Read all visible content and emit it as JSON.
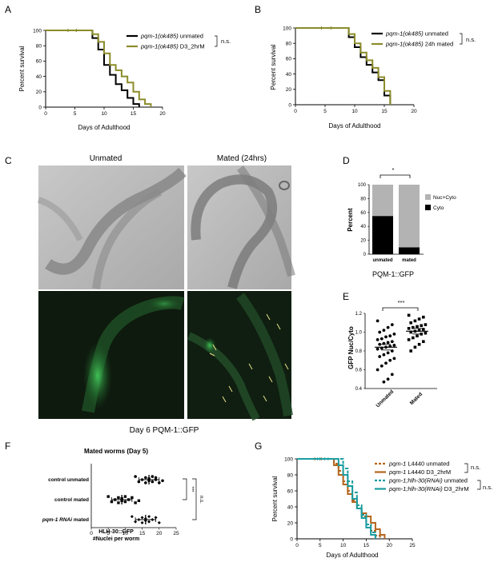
{
  "panels": {
    "A": {
      "letter": "A",
      "ylabel": "Percent survival",
      "xlabel": "Days of Adulthood",
      "legend": [
        {
          "italic": "pqm-1(ok485)",
          "rest": " unmated",
          "color": "#000000"
        },
        {
          "italic": "pqm-1(ok485)",
          "rest": " D3_2hrM",
          "color": "#8b8c2a"
        }
      ],
      "ns": "n.s."
    },
    "B": {
      "letter": "B",
      "ylabel": "Percent survival",
      "xlabel": "Days of Adulthood",
      "legend": [
        {
          "italic": "pqm-1(ok485)",
          "rest": " unmated",
          "color": "#000000"
        },
        {
          "italic": "pqm-1(ok485)",
          "rest": " 24h mated",
          "color": "#8b8c2a"
        }
      ],
      "ns": "n.s."
    },
    "C": {
      "letter": "C",
      "col1": "Unmated",
      "col2": "Mated  (24hrs)",
      "caption": "Day 6 PQM-1::GFP"
    },
    "D": {
      "letter": "D",
      "ylabel": "Percent",
      "caption": "PQM-1::GFP",
      "sig": "*",
      "legend": [
        {
          "label": "Nuc+Cyto",
          "color": "#b3b3b3"
        },
        {
          "label": "Cyto",
          "color": "#000000"
        }
      ]
    },
    "E": {
      "letter": "E",
      "ylabel": "GFP Nuc/Cyto",
      "sig": "***"
    },
    "F": {
      "letter": "F",
      "title": "Mated worms (Day 5)",
      "xlabel1": "HLH-30::GFP",
      "xlabel2": "#Nuclei per worm",
      "rows": [
        {
          "label": "control unmated",
          "italic": false
        },
        {
          "label": "control mated",
          "italic": false
        },
        {
          "italic_part": "pqm-1 RNAi",
          "rest": " mated",
          "italic": true
        }
      ],
      "sig1": "***",
      "sig2": "n.s."
    },
    "G": {
      "letter": "G",
      "ylabel": "Percent survival",
      "xlabel": "Days of Adulthood",
      "legend": [
        {
          "italic": "pqm-1",
          "rest": " L4440 unmated",
          "color": "#b5651d",
          "dash": true
        },
        {
          "italic": "pqm-1",
          "rest": " L4440 D3_2hrM",
          "color": "#b5651d",
          "dash": false
        },
        {
          "italic": "pqm-1;hlh-30(RNAi)",
          "rest": " unmated",
          "color": "#1a9da0",
          "dash": true
        },
        {
          "italic": "pqm-1;hlh-30(RNAi)",
          "rest": " D3_2hrM",
          "color": "#1a9da0",
          "dash": false
        }
      ],
      "ns1": "n.s.",
      "ns2": "n.s."
    }
  },
  "chart_data": [
    {
      "panel": "A",
      "type": "line",
      "xlim": [
        0,
        20
      ],
      "ylim": [
        0,
        100
      ],
      "xticks": [
        0,
        5,
        10,
        15,
        20
      ],
      "yticks": [
        0,
        20,
        40,
        60,
        80,
        100
      ],
      "xlabel": "Days of Adulthood",
      "ylabel": "Percent survival",
      "series": [
        {
          "name": "pqm-1(ok485) unmated",
          "color": "#000000",
          "x": [
            0,
            7,
            8,
            9,
            10,
            11,
            12,
            13,
            14,
            15,
            16
          ],
          "y": [
            100,
            100,
            90,
            75,
            55,
            42,
            30,
            22,
            12,
            4,
            0
          ]
        },
        {
          "name": "pqm-1(ok485) D3_2hrM",
          "color": "#8b8c2a",
          "x": [
            0,
            7,
            8,
            9,
            10,
            11,
            12,
            13,
            14,
            15,
            16,
            17,
            18
          ],
          "y": [
            100,
            100,
            95,
            85,
            70,
            55,
            48,
            40,
            32,
            20,
            10,
            4,
            0
          ]
        }
      ]
    },
    {
      "panel": "B",
      "type": "line",
      "xlim": [
        0,
        20
      ],
      "ylim": [
        0,
        100
      ],
      "xticks": [
        0,
        5,
        10,
        15,
        20
      ],
      "yticks": [
        0,
        20,
        40,
        60,
        80,
        100
      ],
      "xlabel": "Days of Adulthood",
      "ylabel": "Percent survival",
      "series": [
        {
          "name": "pqm-1(ok485) unmated",
          "color": "#000000",
          "x": [
            0,
            8,
            9,
            10,
            11,
            12,
            13,
            14,
            15,
            16
          ],
          "y": [
            100,
            100,
            88,
            75,
            62,
            52,
            42,
            32,
            12,
            0
          ]
        },
        {
          "name": "pqm-1(ok485) 24h mated",
          "color": "#8b8c2a",
          "x": [
            0,
            8,
            9,
            10,
            11,
            12,
            13,
            14,
            15,
            16
          ],
          "y": [
            100,
            100,
            92,
            80,
            68,
            58,
            48,
            36,
            18,
            0
          ]
        }
      ]
    },
    {
      "panel": "D",
      "type": "bar",
      "categories": [
        "unmated",
        "mated"
      ],
      "ylim": [
        0,
        100
      ],
      "yticks": [
        0,
        20,
        40,
        60,
        80,
        100
      ],
      "series": [
        {
          "name": "Cyto",
          "values": [
            55,
            10
          ]
        },
        {
          "name": "Nuc+Cyto",
          "values": [
            45,
            90
          ]
        }
      ]
    },
    {
      "panel": "E",
      "type": "scatter",
      "categories": [
        "Unmated",
        "Mated"
      ],
      "ylim": [
        0.4,
        1.2
      ],
      "yticks": [
        0.4,
        0.6,
        0.8,
        1.0,
        1.2
      ],
      "means": [
        0.84,
        1.01
      ],
      "series": [
        {
          "name": "Unmated",
          "values": [
            1.12,
            1.08,
            1.05,
            1.02,
            1.0,
            0.98,
            0.96,
            0.95,
            0.93,
            0.92,
            0.9,
            0.89,
            0.88,
            0.87,
            0.86,
            0.85,
            0.84,
            0.83,
            0.82,
            0.8,
            0.78,
            0.76,
            0.74,
            0.72,
            0.7,
            0.67,
            0.64,
            0.6,
            0.55,
            0.5,
            0.47
          ]
        },
        {
          "name": "Mated",
          "values": [
            1.18,
            1.16,
            1.14,
            1.12,
            1.1,
            1.08,
            1.07,
            1.06,
            1.05,
            1.04,
            1.03,
            1.02,
            1.01,
            1.0,
            0.99,
            0.98,
            0.96,
            0.94,
            0.92,
            0.9,
            0.87,
            0.84,
            0.8
          ]
        }
      ]
    },
    {
      "panel": "F",
      "type": "scatter",
      "xlim": [
        0,
        25
      ],
      "xticks": [
        0,
        5,
        10,
        15,
        20,
        25
      ],
      "categories": [
        "control unmated",
        "control mated",
        "pqm-1 RNAi mated"
      ],
      "means": [
        17,
        9,
        16
      ],
      "series": [
        {
          "name": "control unmated",
          "values": [
            13,
            14,
            15,
            16,
            16,
            17,
            17,
            18,
            18,
            19,
            19,
            20,
            21
          ]
        },
        {
          "name": "control mated",
          "values": [
            5,
            6,
            7,
            8,
            8,
            9,
            9,
            10,
            10,
            11,
            12,
            13,
            14
          ]
        },
        {
          "name": "pqm-1 RNAi mated",
          "values": [
            12,
            13,
            14,
            15,
            15,
            16,
            16,
            17,
            17,
            18,
            19,
            20
          ]
        }
      ]
    },
    {
      "panel": "G",
      "type": "line",
      "xlim": [
        0,
        25
      ],
      "ylim": [
        0,
        100
      ],
      "xticks": [
        0,
        5,
        10,
        15,
        20,
        25
      ],
      "yticks": [
        0,
        20,
        40,
        60,
        80,
        100
      ],
      "xlabel": "Days of Adulthood",
      "ylabel": "Percent survival",
      "series": [
        {
          "name": "pqm-1 L4440 unmated",
          "color": "#b5651d",
          "dash": true,
          "x": [
            0,
            7,
            8,
            9,
            10,
            11,
            12,
            13,
            14,
            15,
            16,
            17,
            18
          ],
          "y": [
            100,
            100,
            94,
            85,
            72,
            60,
            48,
            38,
            28,
            18,
            10,
            4,
            0
          ]
        },
        {
          "name": "pqm-1 L4440 D3_2hrM",
          "color": "#b5651d",
          "dash": false,
          "x": [
            0,
            7,
            8,
            9,
            10,
            11,
            12,
            13,
            14,
            15,
            16,
            17,
            18,
            19
          ],
          "y": [
            100,
            100,
            92,
            80,
            68,
            56,
            46,
            38,
            32,
            28,
            20,
            12,
            5,
            0
          ]
        },
        {
          "name": "pqm-1;hlh-30(RNAi) unmated",
          "color": "#1a9da0",
          "dash": true,
          "x": [
            0,
            9,
            10,
            11,
            12,
            13,
            14,
            15,
            16,
            17
          ],
          "y": [
            100,
            100,
            88,
            72,
            58,
            42,
            30,
            18,
            8,
            0
          ]
        },
        {
          "name": "pqm-1;hlh-30(RNAi) D3_2hrM",
          "color": "#1a9da0",
          "dash": false,
          "x": [
            0,
            8,
            9,
            10,
            11,
            12,
            13,
            14,
            15,
            16,
            17
          ],
          "y": [
            100,
            100,
            92,
            80,
            66,
            50,
            38,
            26,
            14,
            5,
            0
          ]
        }
      ]
    }
  ]
}
